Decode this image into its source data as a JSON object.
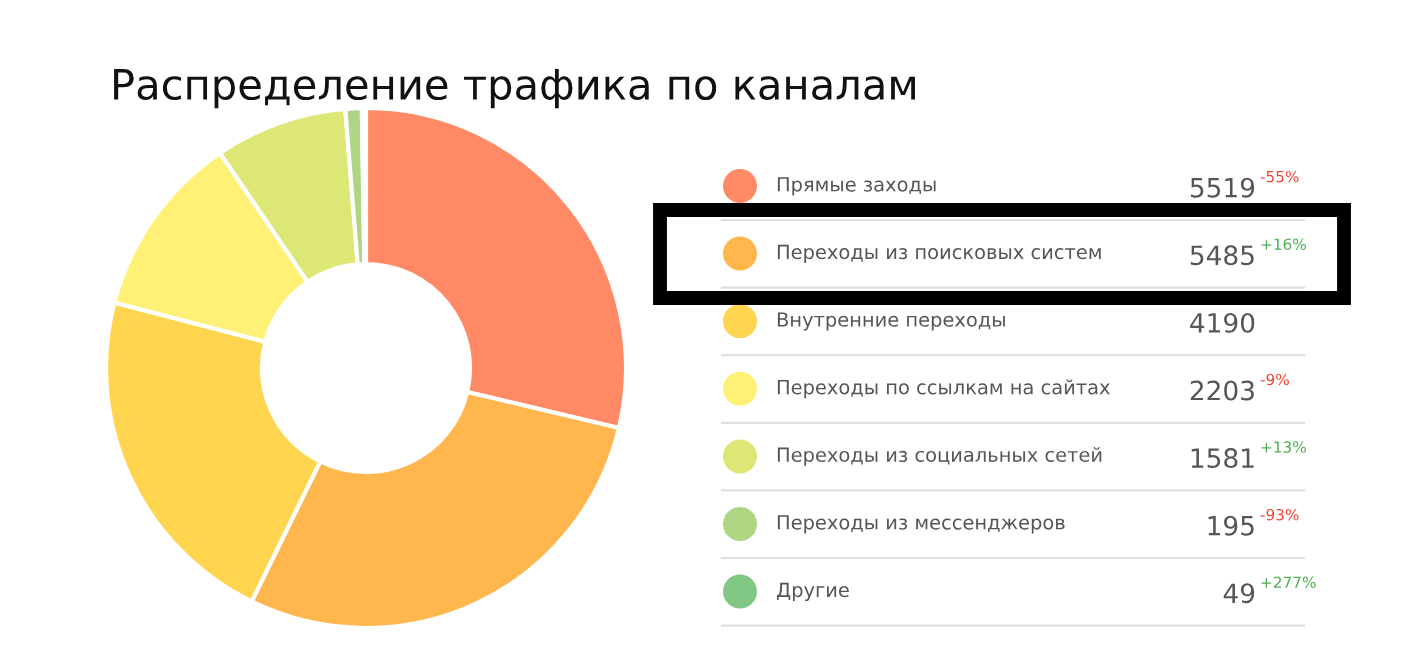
{
  "chart_data": {
    "type": "donut",
    "title": "Распределение трафика по каналам",
    "categories": [
      "Прямые заходы",
      "Переходы из поисковых систем",
      "Внутренние переходы",
      "Переходы по ссылкам на сайтах",
      "Переходы из социальных сетей",
      "Переходы из мессенджеров",
      "Другие"
    ],
    "values": [
      5519,
      5485,
      4190,
      2203,
      1581,
      195,
      49
    ],
    "colors": [
      "#ff8a65",
      "#ffb74d",
      "#ffd54f",
      "#fff176",
      "#dce775",
      "#aed581",
      "#81c784"
    ],
    "data_labels": true,
    "legend": "right",
    "annotations": [
      {
        "text": "-55%",
        "x": "Прямые заходы"
      },
      {
        "text": "+16%",
        "x": "Переходы из поисковых систем"
      },
      {
        "text": "-9%",
        "x": "Переходы по ссылкам на сайтах"
      },
      {
        "text": "+13%",
        "x": "Переходы из социальных сетей"
      },
      {
        "text": "-93%",
        "x": "Переходы из мессенджеров"
      },
      {
        "text": "+277%",
        "x": "Другие"
      }
    ]
  }
}
